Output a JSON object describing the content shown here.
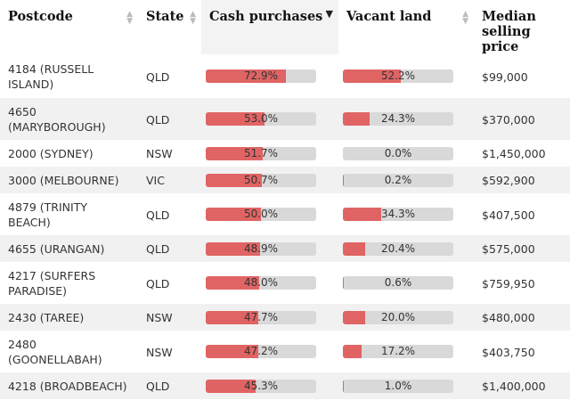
{
  "headers": [
    {
      "label": "Postcode"
    },
    {
      "label": "State"
    },
    {
      "label": "Cash purchases"
    },
    {
      "label": "Vacant land"
    },
    {
      "label": "Median selling price"
    }
  ],
  "colors": {
    "bar_fill": "#e06464",
    "bar_track": "#d9d9d9",
    "alt_row": "#f1f1f1"
  },
  "rows": [
    {
      "postcode": "4184 (RUSSELL ISLAND)",
      "state": "QLD",
      "cash": "72.9%",
      "cash_pct": 72.9,
      "land": "52.2%",
      "land_pct": 52.2,
      "price": "$99,000"
    },
    {
      "postcode": "4650 (MARYBOROUGH)",
      "state": "QLD",
      "cash": "53.0%",
      "cash_pct": 53.0,
      "land": "24.3%",
      "land_pct": 24.3,
      "price": "$370,000"
    },
    {
      "postcode": "2000 (SYDNEY)",
      "state": "NSW",
      "cash": "51.7%",
      "cash_pct": 51.7,
      "land": "0.0%",
      "land_pct": 0.0,
      "price": "$1,450,000"
    },
    {
      "postcode": "3000 (MELBOURNE)",
      "state": "VIC",
      "cash": "50.7%",
      "cash_pct": 50.7,
      "land": "0.2%",
      "land_pct": 0.2,
      "price": "$592,900"
    },
    {
      "postcode": "4879 (TRINITY BEACH)",
      "state": "QLD",
      "cash": "50.0%",
      "cash_pct": 50.0,
      "land": "34.3%",
      "land_pct": 34.3,
      "price": "$407,500"
    },
    {
      "postcode": "4655 (URANGAN)",
      "state": "QLD",
      "cash": "48.9%",
      "cash_pct": 48.9,
      "land": "20.4%",
      "land_pct": 20.4,
      "price": "$575,000"
    },
    {
      "postcode": "4217 (SURFERS PARADISE)",
      "state": "QLD",
      "cash": "48.0%",
      "cash_pct": 48.0,
      "land": "0.6%",
      "land_pct": 0.6,
      "price": "$759,950"
    },
    {
      "postcode": "2430 (TAREE)",
      "state": "NSW",
      "cash": "47.7%",
      "cash_pct": 47.7,
      "land": "20.0%",
      "land_pct": 20.0,
      "price": "$480,000"
    },
    {
      "postcode": "2480 (GOONELLABAH)",
      "state": "NSW",
      "cash": "47.2%",
      "cash_pct": 47.2,
      "land": "17.2%",
      "land_pct": 17.2,
      "price": "$403,750"
    },
    {
      "postcode": "4218 (BROADBEACH)",
      "state": "QLD",
      "cash": "45.3%",
      "cash_pct": 45.3,
      "land": "1.0%",
      "land_pct": 1.0,
      "price": "$1,400,000"
    }
  ]
}
